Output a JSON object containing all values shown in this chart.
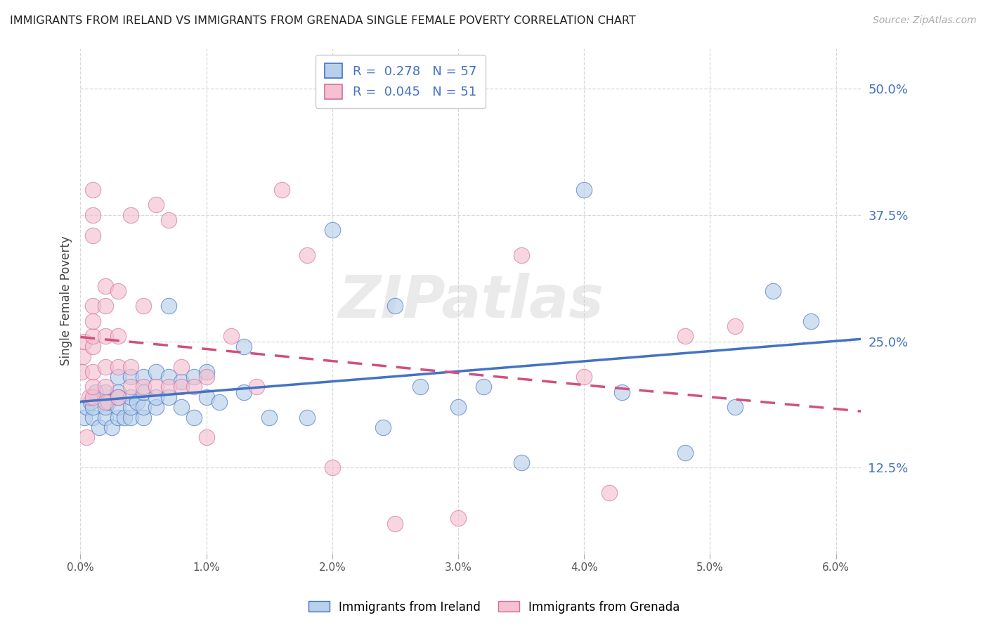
{
  "title": "IMMIGRANTS FROM IRELAND VS IMMIGRANTS FROM GRENADA SINGLE FEMALE POVERTY CORRELATION CHART",
  "source": "Source: ZipAtlas.com",
  "ylabel": "Single Female Poverty",
  "xlim": [
    0.0,
    0.062
  ],
  "ylim": [
    0.04,
    0.54
  ],
  "ytick_vals": [
    0.125,
    0.25,
    0.375,
    0.5
  ],
  "ytick_labels": [
    "12.5%",
    "25.0%",
    "37.5%",
    "50.0%"
  ],
  "xtick_vals": [
    0.0,
    0.01,
    0.02,
    0.03,
    0.04,
    0.05,
    0.06
  ],
  "xtick_labels": [
    "0.0%",
    "1.0%",
    "2.0%",
    "3.0%",
    "4.0%",
    "5.0%",
    "6.0%"
  ],
  "ireland_dot_color": "#b8d0ea",
  "ireland_edge_color": "#4472c4",
  "grenada_dot_color": "#f5c0d0",
  "grenada_edge_color": "#d070a0",
  "ireland_line_color": "#4472c4",
  "grenada_line_color": "#d05080",
  "ireland_R": 0.278,
  "ireland_N": 57,
  "grenada_R": 0.045,
  "grenada_N": 51,
  "ireland_label": "Immigrants from Ireland",
  "grenada_label": "Immigrants from Grenada",
  "background_color": "#ffffff",
  "grid_color": "#d8d8d8",
  "ireland_x": [
    0.0003,
    0.0005,
    0.0008,
    0.001,
    0.001,
    0.0012,
    0.0015,
    0.002,
    0.002,
    0.002,
    0.0022,
    0.0025,
    0.003,
    0.003,
    0.003,
    0.003,
    0.003,
    0.0035,
    0.004,
    0.004,
    0.004,
    0.004,
    0.0045,
    0.005,
    0.005,
    0.005,
    0.005,
    0.006,
    0.006,
    0.006,
    0.007,
    0.007,
    0.007,
    0.008,
    0.008,
    0.009,
    0.009,
    0.01,
    0.01,
    0.011,
    0.013,
    0.013,
    0.015,
    0.018,
    0.02,
    0.024,
    0.025,
    0.027,
    0.03,
    0.032,
    0.035,
    0.04,
    0.043,
    0.048,
    0.052,
    0.055,
    0.058
  ],
  "ireland_y": [
    0.175,
    0.185,
    0.19,
    0.175,
    0.185,
    0.2,
    0.165,
    0.175,
    0.185,
    0.2,
    0.19,
    0.165,
    0.175,
    0.185,
    0.2,
    0.215,
    0.195,
    0.175,
    0.175,
    0.185,
    0.195,
    0.215,
    0.19,
    0.175,
    0.185,
    0.2,
    0.215,
    0.185,
    0.195,
    0.22,
    0.195,
    0.215,
    0.285,
    0.185,
    0.21,
    0.175,
    0.215,
    0.195,
    0.22,
    0.19,
    0.245,
    0.2,
    0.175,
    0.175,
    0.36,
    0.165,
    0.285,
    0.205,
    0.185,
    0.205,
    0.13,
    0.4,
    0.2,
    0.14,
    0.185,
    0.3,
    0.27
  ],
  "grenada_x": [
    0.0001,
    0.0002,
    0.0003,
    0.0005,
    0.0007,
    0.001,
    0.001,
    0.001,
    0.001,
    0.001,
    0.001,
    0.001,
    0.001,
    0.001,
    0.001,
    0.002,
    0.002,
    0.002,
    0.002,
    0.002,
    0.002,
    0.003,
    0.003,
    0.003,
    0.003,
    0.004,
    0.004,
    0.004,
    0.005,
    0.005,
    0.006,
    0.006,
    0.007,
    0.007,
    0.008,
    0.008,
    0.009,
    0.01,
    0.01,
    0.012,
    0.014,
    0.016,
    0.018,
    0.02,
    0.025,
    0.03,
    0.035,
    0.04,
    0.042,
    0.048,
    0.052
  ],
  "grenada_y": [
    0.22,
    0.235,
    0.25,
    0.155,
    0.195,
    0.195,
    0.205,
    0.22,
    0.245,
    0.255,
    0.27,
    0.285,
    0.355,
    0.375,
    0.4,
    0.19,
    0.205,
    0.225,
    0.255,
    0.285,
    0.305,
    0.195,
    0.225,
    0.255,
    0.3,
    0.205,
    0.225,
    0.375,
    0.205,
    0.285,
    0.205,
    0.385,
    0.205,
    0.37,
    0.205,
    0.225,
    0.205,
    0.215,
    0.155,
    0.255,
    0.205,
    0.4,
    0.335,
    0.125,
    0.07,
    0.075,
    0.335,
    0.215,
    0.1,
    0.255,
    0.265
  ]
}
